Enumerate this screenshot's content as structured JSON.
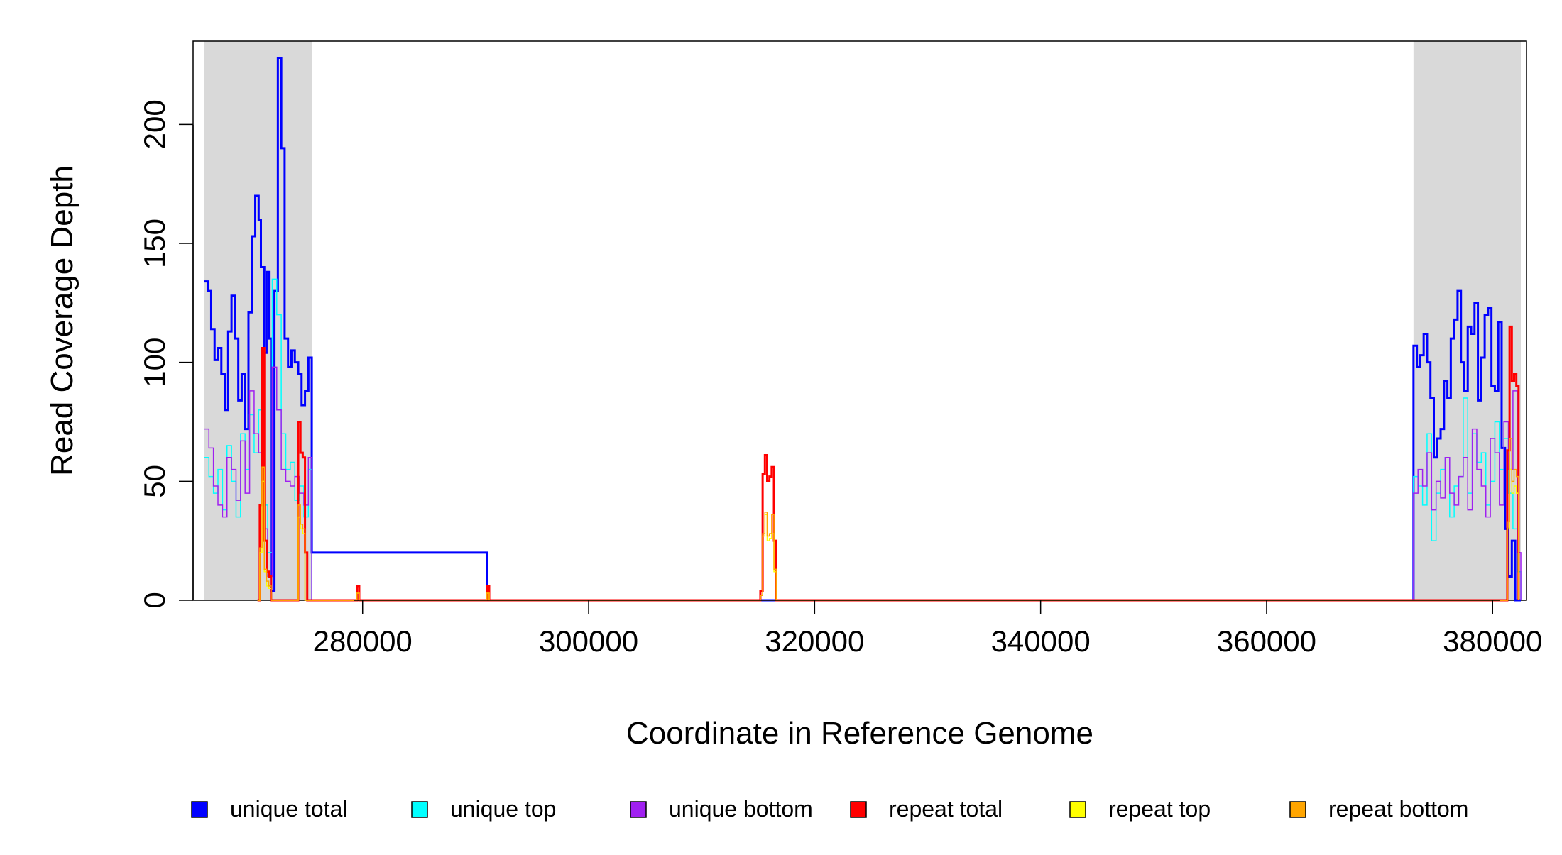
{
  "chart_data": {
    "type": "line",
    "title": "",
    "xlabel": "Coordinate in Reference Genome",
    "ylabel": "Read Coverage Depth",
    "xlim": [
      265000,
      383000
    ],
    "ylim": [
      0,
      235
    ],
    "x_ticks": [
      280000,
      300000,
      320000,
      340000,
      360000,
      380000
    ],
    "x_tick_labels": [
      "280000",
      "300000",
      "320000",
      "340000",
      "360000",
      "380000"
    ],
    "y_ticks": [
      0,
      50,
      100,
      150,
      200
    ],
    "y_tick_labels": [
      "0",
      "50",
      "100",
      "150",
      "200"
    ],
    "grid": false,
    "legend_position": "bottom",
    "shaded_regions": [
      {
        "x_start": 266000,
        "x_end": 275500
      },
      {
        "x_start": 373000,
        "x_end": 382500
      }
    ],
    "series": [
      {
        "name": "unique total",
        "color": "#0000FF",
        "line_width": 3,
        "x": [
          266000,
          266300,
          266600,
          266900,
          267200,
          267500,
          267800,
          268100,
          268400,
          268700,
          269000,
          269300,
          269600,
          269900,
          270200,
          270500,
          270800,
          271000,
          271300,
          271500,
          271700,
          271900,
          272200,
          272500,
          272800,
          273100,
          273400,
          273700,
          274000,
          274300,
          274600,
          274900,
          275200,
          275500,
          291000,
          315000,
          316500,
          373000,
          373300,
          373600,
          373900,
          374200,
          374500,
          374800,
          375100,
          375400,
          375700,
          376000,
          376300,
          376600,
          376900,
          377200,
          377500,
          377800,
          378100,
          378400,
          378700,
          379000,
          379300,
          379600,
          379900,
          380200,
          380500,
          380800,
          381100,
          381400,
          381700,
          382000,
          382500
        ],
        "y": [
          134,
          130,
          114,
          101,
          106,
          95,
          80,
          113,
          128,
          110,
          84,
          95,
          72,
          121,
          153,
          170,
          160,
          140,
          104,
          138,
          110,
          4,
          130,
          228,
          190,
          110,
          98,
          105,
          100,
          95,
          82,
          88,
          102,
          20,
          0,
          0,
          0,
          107,
          98,
          103,
          112,
          100,
          85,
          60,
          68,
          72,
          92,
          85,
          110,
          118,
          130,
          100,
          88,
          115,
          112,
          125,
          84,
          102,
          120,
          123,
          90,
          88,
          117,
          64,
          30,
          10,
          25,
          0,
          0
        ]
      },
      {
        "name": "unique top",
        "color": "#00FFFF",
        "line_width": 1.5,
        "x": [
          266000,
          266400,
          266800,
          267200,
          267600,
          268000,
          268400,
          268800,
          269200,
          269600,
          270000,
          270400,
          270800,
          271200,
          271600,
          272000,
          272400,
          272800,
          273200,
          273600,
          274000,
          274400,
          274800,
          275200,
          275500,
          373000,
          373400,
          373800,
          374200,
          374600,
          375000,
          375400,
          375800,
          376200,
          376600,
          377000,
          377400,
          377800,
          378200,
          378600,
          379000,
          379400,
          379800,
          380200,
          380600,
          381000,
          381400,
          381800,
          382200,
          382500
        ],
        "y": [
          60,
          52,
          45,
          55,
          38,
          65,
          50,
          35,
          70,
          55,
          78,
          62,
          80,
          40,
          20,
          135,
          120,
          70,
          55,
          58,
          42,
          48,
          35,
          55,
          0,
          52,
          48,
          40,
          70,
          25,
          45,
          55,
          60,
          35,
          48,
          52,
          85,
          45,
          70,
          58,
          62,
          40,
          50,
          75,
          55,
          68,
          45,
          30,
          12,
          0
        ]
      },
      {
        "name": "unique bottom",
        "color": "#A020F0",
        "line_width": 1.5,
        "x": [
          266000,
          266400,
          266800,
          267200,
          267600,
          268000,
          268400,
          268800,
          269200,
          269600,
          270000,
          270400,
          270800,
          271200,
          271600,
          272000,
          272400,
          272800,
          273200,
          273600,
          274000,
          274400,
          274800,
          275200,
          275500,
          373000,
          373400,
          373800,
          374200,
          374600,
          375000,
          375400,
          375800,
          376200,
          376600,
          377000,
          377400,
          377800,
          378200,
          378600,
          379000,
          379400,
          379800,
          380200,
          380600,
          381000,
          381400,
          381800,
          382200,
          382500
        ],
        "y": [
          72,
          64,
          48,
          40,
          35,
          60,
          55,
          42,
          67,
          45,
          88,
          70,
          62,
          30,
          10,
          98,
          80,
          55,
          50,
          48,
          52,
          45,
          40,
          60,
          0,
          45,
          55,
          48,
          62,
          38,
          50,
          43,
          60,
          45,
          40,
          52,
          60,
          38,
          72,
          55,
          48,
          35,
          68,
          62,
          40,
          75,
          55,
          88,
          20,
          0
        ]
      },
      {
        "name": "repeat total",
        "color": "#FF0000",
        "line_width": 3,
        "x": [
          270700,
          270900,
          271100,
          271300,
          271500,
          271700,
          271900,
          272100,
          274100,
          274300,
          274500,
          274700,
          274900,
          275100,
          275300,
          279300,
          279500,
          279700,
          290800,
          291000,
          291200,
          315000,
          315200,
          315400,
          315600,
          315800,
          316000,
          316200,
          316400,
          316600,
          316800,
          381100,
          381300,
          381500,
          381700,
          381900,
          382100,
          382300
        ],
        "y": [
          0,
          40,
          106,
          25,
          12,
          10,
          0,
          0,
          0,
          75,
          62,
          60,
          20,
          0,
          0,
          0,
          6,
          0,
          0,
          6,
          0,
          0,
          4,
          53,
          61,
          50,
          52,
          56,
          25,
          0,
          0,
          0,
          63,
          115,
          92,
          95,
          90,
          0
        ]
      },
      {
        "name": "repeat top",
        "color": "#FFFF00",
        "line_width": 1.5,
        "x": [
          270700,
          270900,
          271100,
          271300,
          271500,
          271700,
          271900,
          274100,
          274300,
          274500,
          274700,
          274900,
          279300,
          279500,
          279700,
          290800,
          291000,
          291200,
          315000,
          315200,
          315400,
          315600,
          315800,
          316000,
          316200,
          316400,
          316600,
          381100,
          381300,
          381500,
          381700,
          381900,
          382100,
          382300
        ],
        "y": [
          0,
          20,
          50,
          12,
          6,
          5,
          0,
          0,
          35,
          30,
          28,
          0,
          0,
          3,
          0,
          0,
          3,
          0,
          0,
          2,
          27,
          36,
          25,
          26,
          28,
          12,
          0,
          0,
          30,
          55,
          45,
          48,
          45,
          0
        ]
      },
      {
        "name": "repeat bottom",
        "color": "#FFA500",
        "line_width": 1.5,
        "x": [
          270700,
          270900,
          271100,
          271300,
          271500,
          271700,
          271900,
          274100,
          274300,
          274500,
          274700,
          274900,
          279300,
          279500,
          279700,
          290800,
          291000,
          291200,
          315000,
          315200,
          315400,
          315600,
          315800,
          316000,
          316200,
          316400,
          316600,
          381100,
          381300,
          381500,
          381700,
          381900,
          382100,
          382300
        ],
        "y": [
          0,
          22,
          56,
          13,
          8,
          6,
          0,
          0,
          40,
          32,
          30,
          0,
          0,
          3,
          0,
          0,
          3,
          0,
          0,
          2,
          28,
          37,
          27,
          28,
          36,
          13,
          0,
          0,
          33,
          68,
          50,
          55,
          52,
          0
        ]
      }
    ]
  }
}
